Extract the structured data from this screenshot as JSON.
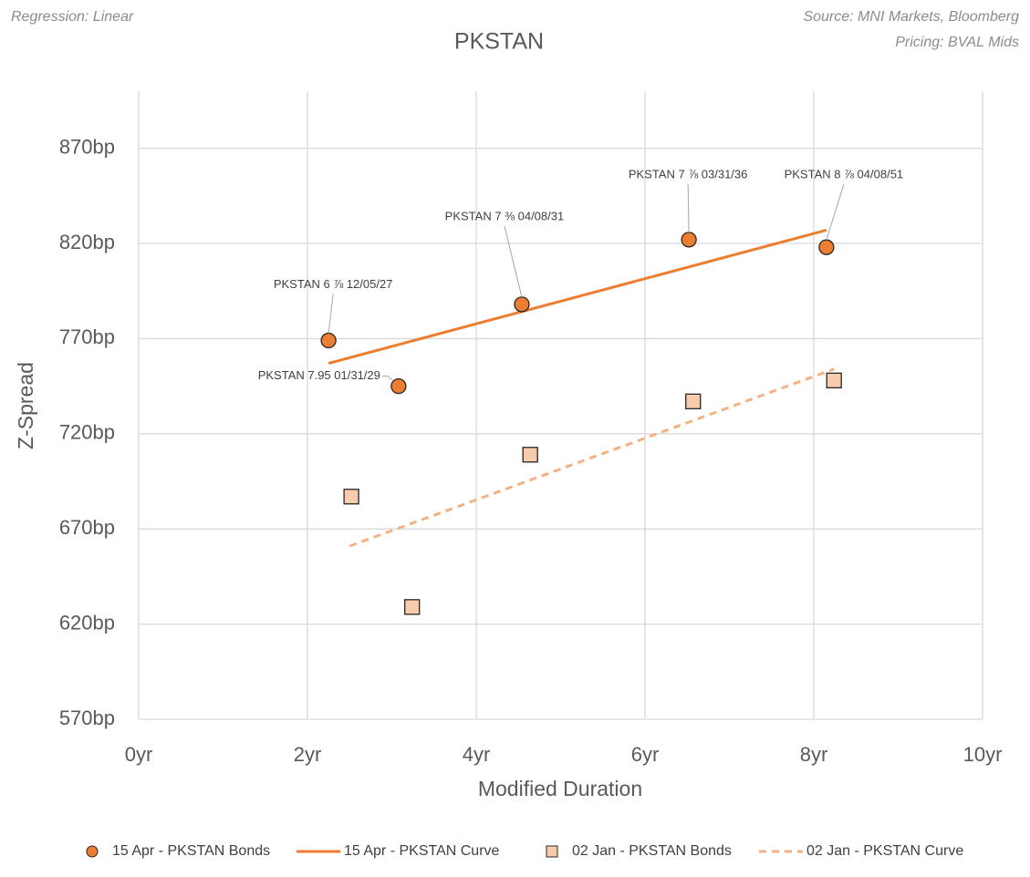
{
  "chart_data": {
    "type": "scatter",
    "title": "PKSTAN",
    "notes": [
      "Regression: Linear",
      "Source: MNI Markets, Bloomberg",
      "Pricing: BVAL Mids"
    ],
    "x_label": "Modified Duration",
    "y_label": "Z-Spread",
    "xlim": [
      0,
      10
    ],
    "xticks": [
      {
        "value": 0,
        "label": "0yr"
      },
      {
        "value": 2,
        "label": "2yr"
      },
      {
        "value": 4,
        "label": "4yr"
      },
      {
        "value": 6,
        "label": "6yr"
      },
      {
        "value": 8,
        "label": "8yr"
      },
      {
        "value": 10,
        "label": "10yr"
      }
    ],
    "ylim": [
      570,
      900
    ],
    "yticks": [
      {
        "value": 570,
        "label": "570bp"
      },
      {
        "value": 620,
        "label": "620bp"
      },
      {
        "value": 670,
        "label": "670bp"
      },
      {
        "value": 720,
        "label": "720bp"
      },
      {
        "value": 770,
        "label": "770bp"
      },
      {
        "value": 820,
        "label": "820bp"
      },
      {
        "value": 870,
        "label": "870bp"
      }
    ],
    "grid": true,
    "legend": "bottom",
    "series": [
      {
        "name": "15 Apr - PKSTAN Bonds",
        "kind": "points",
        "marker": "circle",
        "color": "#ED7D31",
        "x": [
          2.25,
          3.08,
          4.54,
          6.52,
          8.15
        ],
        "values": [
          769,
          745,
          788,
          822,
          818
        ],
        "point_labels": [
          "PKSTAN 6 ⅞ 12/05/27",
          "PKSTAN 7.95 01/31/29",
          "PKSTAN 7 ⅜ 04/08/31",
          "PKSTAN 7 ⅞ 03/31/36",
          "PKSTAN 8 ⅞ 04/08/51"
        ]
      },
      {
        "name": "15 Apr - PKSTAN Curve",
        "kind": "line",
        "dashed": false,
        "color": "#ED7D31",
        "x": [
          2.25,
          8.15
        ],
        "values": [
          757,
          827
        ]
      },
      {
        "name": "02 Jan - PKSTAN Bonds",
        "kind": "points",
        "marker": "square",
        "color": "#F8CBAD",
        "x": [
          2.52,
          3.24,
          4.64,
          6.57,
          8.24
        ],
        "values": [
          687,
          629,
          709,
          737,
          748
        ]
      },
      {
        "name": "02 Jan - PKSTAN Curve",
        "kind": "line",
        "dashed": true,
        "color": "#F4B183",
        "x": [
          2.5,
          8.24
        ],
        "values": [
          661,
          754
        ]
      }
    ]
  }
}
